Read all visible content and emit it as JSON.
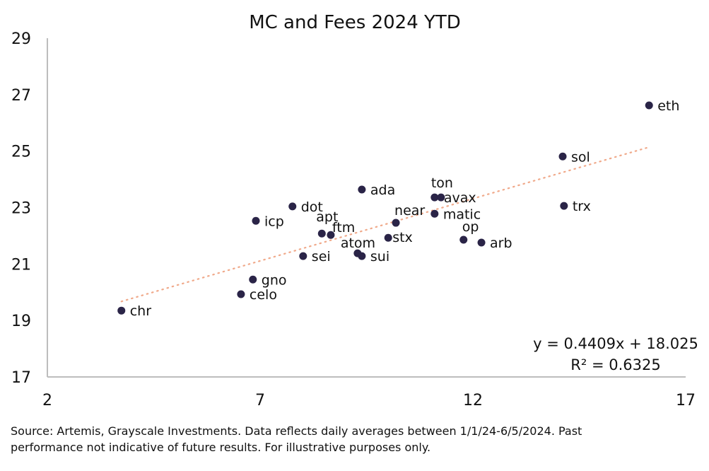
{
  "chart_data": {
    "type": "scatter",
    "title": "MC and Fees 2024 YTD",
    "xlabel": "",
    "ylabel": "",
    "xlim": [
      2,
      17
    ],
    "ylim": [
      17,
      29
    ],
    "x_ticks": [
      "2",
      "7",
      "12",
      "17"
    ],
    "y_ticks": [
      "29",
      "27",
      "25",
      "23",
      "21",
      "19",
      "17"
    ],
    "grid": false,
    "point_color": "#2a2447",
    "trendline_color": "#f0a98a",
    "points": [
      {
        "label": "eth",
        "x": 16.14,
        "y": 26.62
      },
      {
        "label": "sol",
        "x": 14.11,
        "y": 24.81
      },
      {
        "label": "trx",
        "x": 14.14,
        "y": 23.06
      },
      {
        "label": "ton",
        "x": 11.1,
        "y": 23.36
      },
      {
        "label": "avax",
        "x": 11.25,
        "y": 23.36
      },
      {
        "label": "matic",
        "x": 11.1,
        "y": 22.78
      },
      {
        "label": "near",
        "x": 10.19,
        "y": 22.46
      },
      {
        "label": "ada",
        "x": 9.39,
        "y": 23.64
      },
      {
        "label": "dot",
        "x": 7.76,
        "y": 23.04
      },
      {
        "label": "icp",
        "x": 6.9,
        "y": 22.53
      },
      {
        "label": "apt",
        "x": 8.45,
        "y": 22.08
      },
      {
        "label": "ftm",
        "x": 8.66,
        "y": 22.03
      },
      {
        "label": "stx",
        "x": 10.01,
        "y": 21.93
      },
      {
        "label": "op",
        "x": 11.78,
        "y": 21.86
      },
      {
        "label": "arb",
        "x": 12.2,
        "y": 21.76
      },
      {
        "label": "atom",
        "x": 9.29,
        "y": 21.38
      },
      {
        "label": "sui",
        "x": 9.39,
        "y": 21.28
      },
      {
        "label": "sei",
        "x": 8.01,
        "y": 21.28
      },
      {
        "label": "gno",
        "x": 6.83,
        "y": 20.45
      },
      {
        "label": "celo",
        "x": 6.55,
        "y": 19.93
      },
      {
        "label": "chr",
        "x": 3.74,
        "y": 19.35
      }
    ],
    "trendline": {
      "slope": 0.4409,
      "intercept": 18.025,
      "x_range": [
        3.74,
        16.14
      ],
      "equation_label": "y = 0.4409x + 18.025",
      "r2_label": "R² = 0.6325"
    }
  },
  "footnote": {
    "line1": "Source: Artemis, Grayscale Investments. Data reflects daily averages between 1/1/24-6/5/2024. Past",
    "line2": "performance not indicative of future results. For illustrative purposes only."
  }
}
